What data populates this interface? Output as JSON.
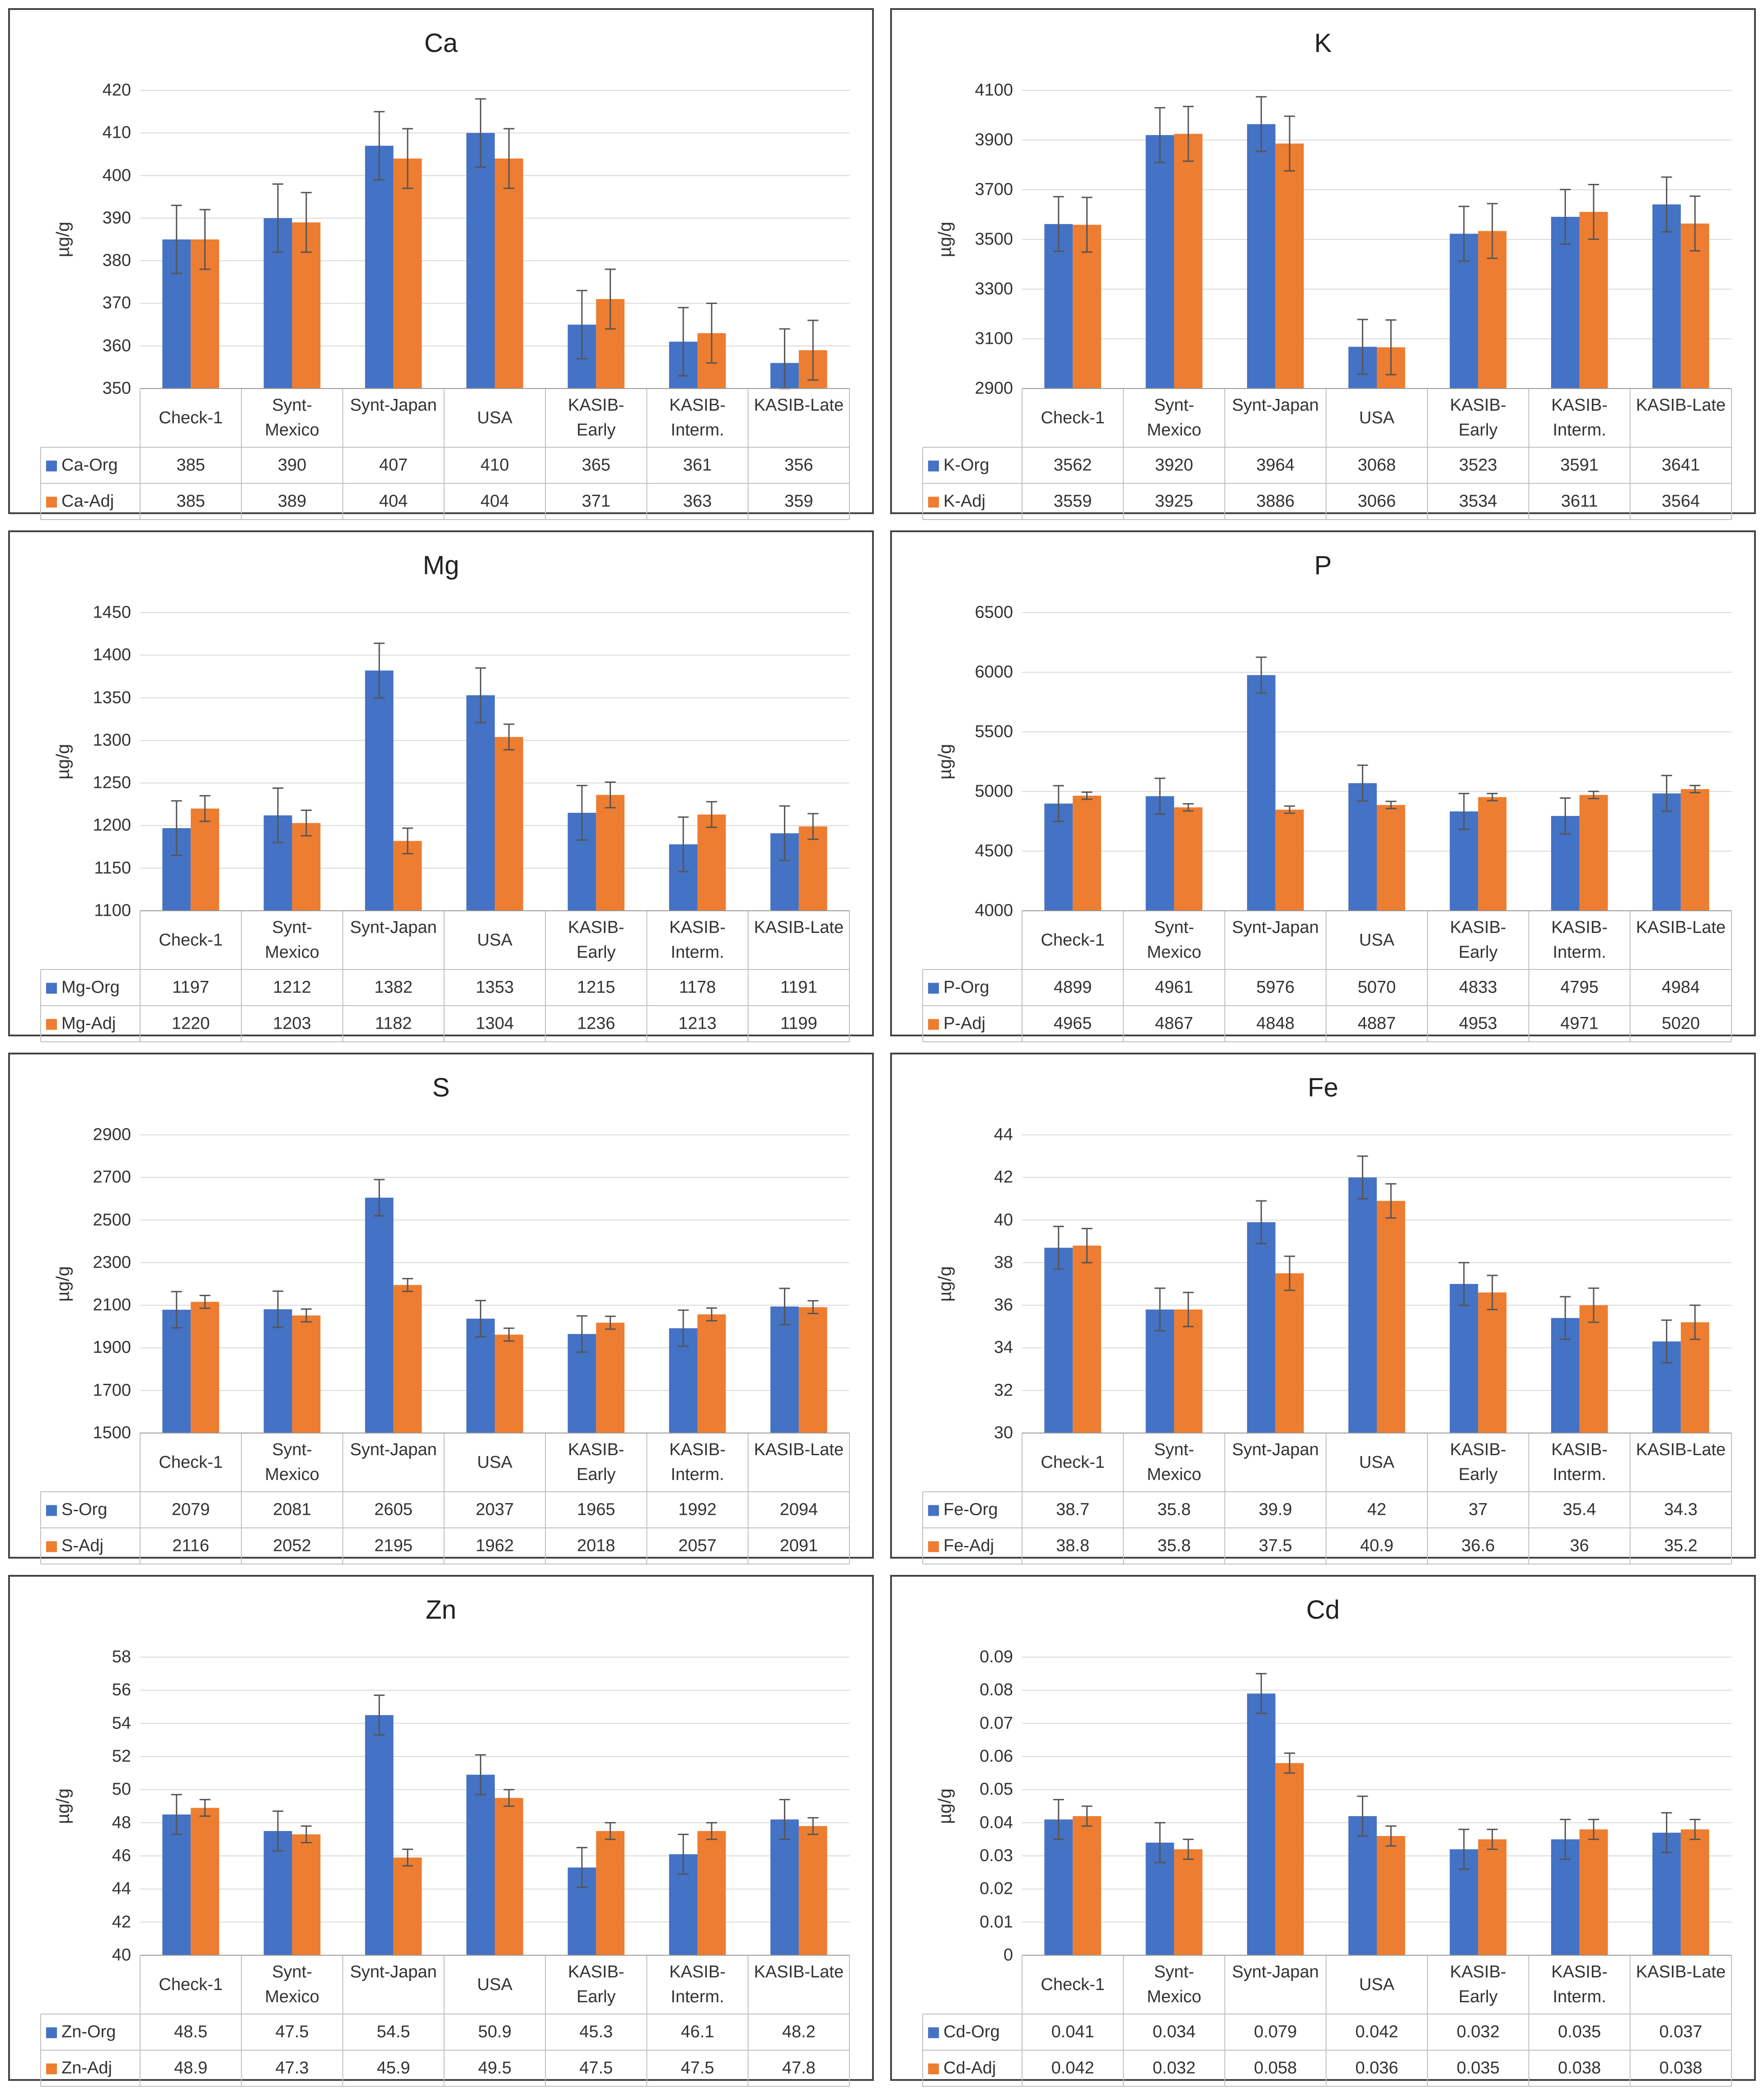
{
  "colors": {
    "org": "#4472C4",
    "adj": "#ED7D31",
    "grid": "#D9D9D9",
    "error_bar": "#555555"
  },
  "chart_data": [
    {
      "type": "bar",
      "title": "Ca",
      "ylabel": "µg/g",
      "categories": [
        "Check-1",
        "Synt-Mexico",
        "Synt-Japan",
        "USA",
        "KASIB-Early",
        "KASIB-Interm.",
        "KASIB-Late"
      ],
      "ylim": [
        350,
        420
      ],
      "yticks": [
        350,
        360,
        370,
        380,
        390,
        400,
        410,
        420
      ],
      "series": [
        {
          "name": "Ca-Org",
          "values": [
            385,
            390,
            407,
            410,
            365,
            361,
            356
          ],
          "err": [
            8,
            8,
            8,
            8,
            8,
            8,
            8
          ]
        },
        {
          "name": "Ca-Adj",
          "values": [
            385,
            389,
            404,
            404,
            371,
            363,
            359
          ],
          "err": [
            7,
            7,
            7,
            7,
            7,
            7,
            7
          ]
        }
      ]
    },
    {
      "type": "bar",
      "title": "K",
      "ylabel": "µg/g",
      "categories": [
        "Check-1",
        "Synt-Mexico",
        "Synt-Japan",
        "USA",
        "KASIB-Early",
        "KASIB-Interm.",
        "KASIB-Late"
      ],
      "ylim": [
        2900,
        4100
      ],
      "yticks": [
        2900,
        3100,
        3300,
        3500,
        3700,
        3900,
        4100
      ],
      "series": [
        {
          "name": "K-Org",
          "values": [
            3562,
            3920,
            3964,
            3068,
            3523,
            3591,
            3641
          ],
          "err": [
            110,
            110,
            110,
            110,
            110,
            110,
            110
          ]
        },
        {
          "name": "K-Adj",
          "values": [
            3559,
            3925,
            3886,
            3066,
            3534,
            3611,
            3564
          ],
          "err": [
            110,
            110,
            110,
            110,
            110,
            110,
            110
          ]
        }
      ]
    },
    {
      "type": "bar",
      "title": "Mg",
      "ylabel": "µg/g",
      "categories": [
        "Check-1",
        "Synt-Mexico",
        "Synt-Japan",
        "USA",
        "KASIB-Early",
        "KASIB-Interm.",
        "KASIB-Late"
      ],
      "ylim": [
        1100,
        1450
      ],
      "yticks": [
        1100,
        1150,
        1200,
        1250,
        1300,
        1350,
        1400,
        1450
      ],
      "series": [
        {
          "name": "Mg-Org",
          "values": [
            1197,
            1212,
            1382,
            1353,
            1215,
            1178,
            1191
          ],
          "err": [
            32,
            32,
            32,
            32,
            32,
            32,
            32
          ]
        },
        {
          "name": "Mg-Adj",
          "values": [
            1220,
            1203,
            1182,
            1304,
            1236,
            1213,
            1199
          ],
          "err": [
            15,
            15,
            15,
            15,
            15,
            15,
            15
          ]
        }
      ]
    },
    {
      "type": "bar",
      "title": "P",
      "ylabel": "µg/g",
      "categories": [
        "Check-1",
        "Synt-Mexico",
        "Synt-Japan",
        "USA",
        "KASIB-Early",
        "KASIB-Interm.",
        "KASIB-Late"
      ],
      "ylim": [
        4000,
        6500
      ],
      "yticks": [
        4000,
        4500,
        5000,
        5500,
        6000,
        6500
      ],
      "series": [
        {
          "name": "P-Org",
          "values": [
            4899,
            4961,
            5976,
            5070,
            4833,
            4795,
            4984
          ],
          "err": [
            150,
            150,
            150,
            150,
            150,
            150,
            150
          ]
        },
        {
          "name": "P-Adj",
          "values": [
            4965,
            4867,
            4848,
            4887,
            4953,
            4971,
            5020
          ],
          "err": [
            30,
            30,
            30,
            30,
            30,
            30,
            30
          ]
        }
      ]
    },
    {
      "type": "bar",
      "title": "S",
      "ylabel": "µg/g",
      "categories": [
        "Check-1",
        "Synt-Mexico",
        "Synt-Japan",
        "USA",
        "KASIB-Early",
        "KASIB-Interm.",
        "KASIB-Late"
      ],
      "ylim": [
        1500,
        2900
      ],
      "yticks": [
        1500,
        1700,
        1900,
        2100,
        2300,
        2500,
        2700,
        2900
      ],
      "series": [
        {
          "name": "S-Org",
          "values": [
            2079,
            2081,
            2605,
            2037,
            1965,
            1992,
            2094
          ],
          "err": [
            85,
            85,
            85,
            85,
            85,
            85,
            85
          ]
        },
        {
          "name": "S-Adj",
          "values": [
            2116,
            2052,
            2195,
            1962,
            2018,
            2057,
            2091
          ],
          "err": [
            30,
            30,
            30,
            30,
            30,
            30,
            30
          ]
        }
      ]
    },
    {
      "type": "bar",
      "title": "Fe",
      "ylabel": "µg/g",
      "categories": [
        "Check-1",
        "Synt-Mexico",
        "Synt-Japan",
        "USA",
        "KASIB-Early",
        "KASIB-Interm.",
        "KASIB-Late"
      ],
      "ylim": [
        30,
        44
      ],
      "yticks": [
        30,
        32,
        34,
        36,
        38,
        40,
        42,
        44
      ],
      "series": [
        {
          "name": "Fe-Org",
          "values": [
            38.7,
            35.8,
            39.9,
            42,
            37,
            35.4,
            34.3
          ],
          "err": [
            1.0,
            1.0,
            1.0,
            1.0,
            1.0,
            1.0,
            1.0
          ]
        },
        {
          "name": "Fe-Adj",
          "values": [
            38.8,
            35.8,
            37.5,
            40.9,
            36.6,
            36,
            35.2
          ],
          "err": [
            0.8,
            0.8,
            0.8,
            0.8,
            0.8,
            0.8,
            0.8
          ]
        }
      ]
    },
    {
      "type": "bar",
      "title": "Zn",
      "ylabel": "µg/g",
      "categories": [
        "Check-1",
        "Synt-Mexico",
        "Synt-Japan",
        "USA",
        "KASIB-Early",
        "KASIB-Interm.",
        "KASIB-Late"
      ],
      "ylim": [
        40,
        58
      ],
      "yticks": [
        40,
        42,
        44,
        46,
        48,
        50,
        52,
        54,
        56,
        58
      ],
      "series": [
        {
          "name": "Zn-Org",
          "values": [
            48.5,
            47.5,
            54.5,
            50.9,
            45.3,
            46.1,
            48.2
          ],
          "err": [
            1.2,
            1.2,
            1.2,
            1.2,
            1.2,
            1.2,
            1.2
          ]
        },
        {
          "name": "Zn-Adj",
          "values": [
            48.9,
            47.3,
            45.9,
            49.5,
            47.5,
            47.5,
            47.8
          ],
          "err": [
            0.5,
            0.5,
            0.5,
            0.5,
            0.5,
            0.5,
            0.5
          ]
        }
      ]
    },
    {
      "type": "bar",
      "title": "Cd",
      "ylabel": "µg/g",
      "categories": [
        "Check-1",
        "Synt-Mexico",
        "Synt-Japan",
        "USA",
        "KASIB-Early",
        "KASIB-Interm.",
        "KASIB-Late"
      ],
      "ylim": [
        0,
        0.09
      ],
      "yticks": [
        0,
        0.01,
        0.02,
        0.03,
        0.04,
        0.05,
        0.06,
        0.07,
        0.08,
        0.09
      ],
      "series": [
        {
          "name": "Cd-Org",
          "values": [
            0.041,
            0.034,
            0.079,
            0.042,
            0.032,
            0.035,
            0.037
          ],
          "err": [
            0.006,
            0.006,
            0.006,
            0.006,
            0.006,
            0.006,
            0.006
          ]
        },
        {
          "name": "Cd-Adj",
          "values": [
            0.042,
            0.032,
            0.058,
            0.036,
            0.035,
            0.038,
            0.038
          ],
          "err": [
            0.003,
            0.003,
            0.003,
            0.003,
            0.003,
            0.003,
            0.003
          ]
        }
      ]
    }
  ]
}
